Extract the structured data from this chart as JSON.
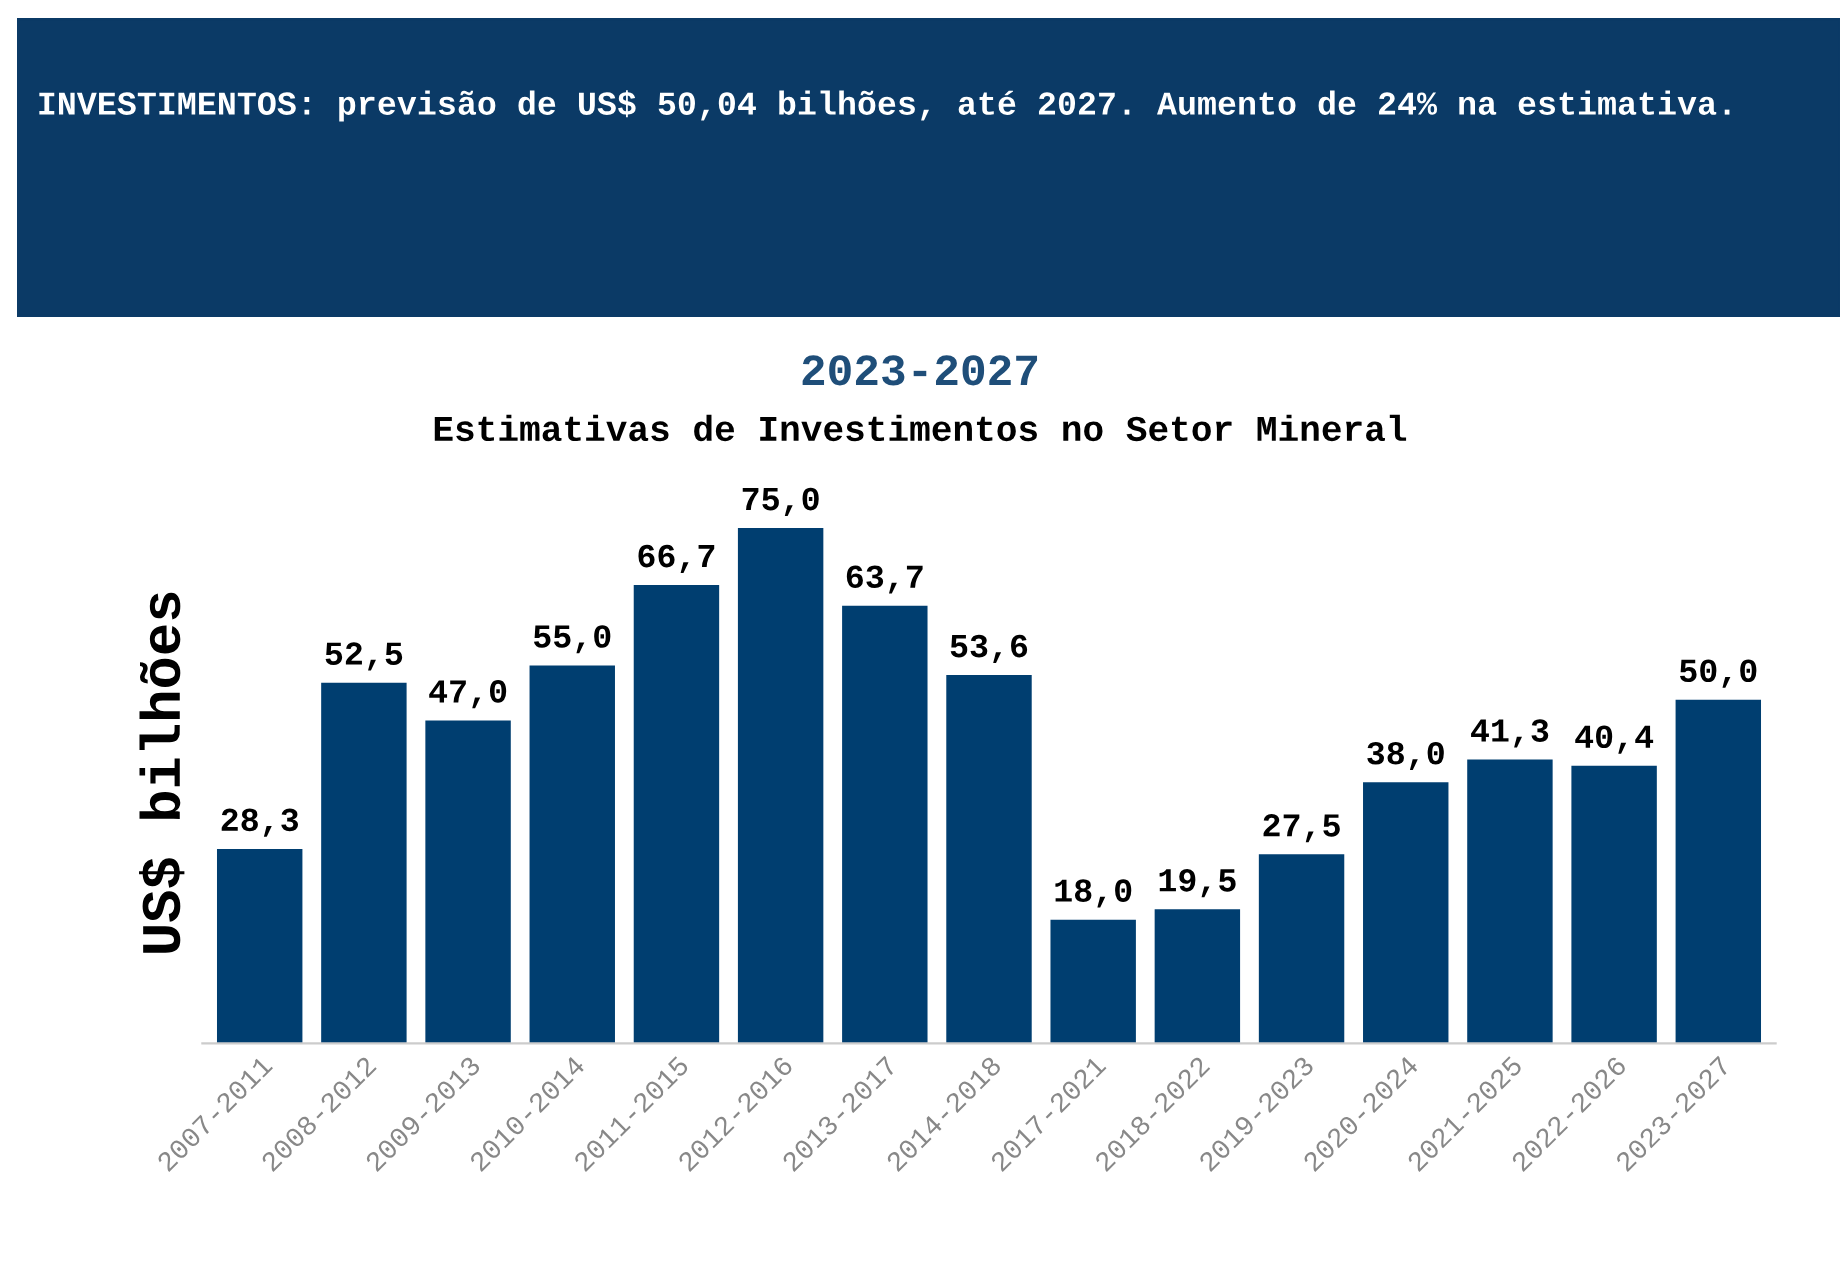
{
  "chart_data": {
    "type": "bar",
    "title": "2023-2027",
    "subtitle": "Estimativas de Investimentos no Setor Mineral",
    "ylabel": "US$ bilhões",
    "annotations": [
      "INVESTIMENTOS: previsão de US$ 50,04 bilhões, até 2027. Aumento de 24% na estimativa."
    ],
    "categories": [
      "2007-2011",
      "2008-2012",
      "2009-2013",
      "2010-2014",
      "2011-2015",
      "2012-2016",
      "2013-2017",
      "2014-2018",
      "2017-2021",
      "2018-2022",
      "2019-2023",
      "2020-2024",
      "2021-2025",
      "2022-2026",
      "2023-2027"
    ],
    "values": [
      28.3,
      52.5,
      47.0,
      55.0,
      66.7,
      75.0,
      63.7,
      53.6,
      18.0,
      19.5,
      27.5,
      38.0,
      41.3,
      40.4,
      50.0
    ],
    "value_labels": [
      "28,3",
      "52,5",
      "47,0",
      "55,0",
      "66,7",
      "75,0",
      "63,7",
      "53,6",
      "18,0",
      "19,5",
      "27,5",
      "38,0",
      "41,3",
      "40,4",
      "50,0"
    ],
    "color": "#003e70",
    "tick_labels": "x",
    "grid": false,
    "legend": false
  }
}
